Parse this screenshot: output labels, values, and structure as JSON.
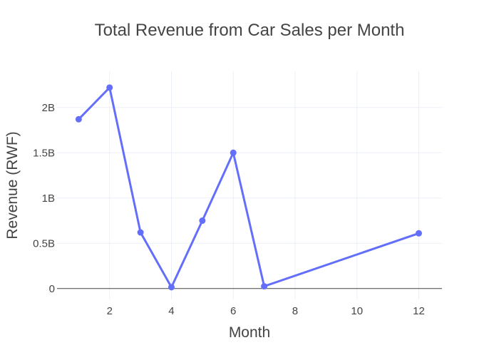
{
  "colors": {
    "background": "#ffffff",
    "plot_background": "#ffffff",
    "grid": "#ebf0f8",
    "zeroline": "#444444",
    "series_line": "#636efa",
    "text": "#444444"
  },
  "chart_data": {
    "type": "line",
    "title": "Total Revenue from Car Sales per Month",
    "xlabel": "Month",
    "ylabel": "Revenue (RWF)",
    "xlim": [
      0.3,
      12.75
    ],
    "ylim": [
      -0.12,
      2.4
    ],
    "y_unit_note": "billions",
    "x_ticks": [
      2,
      4,
      6,
      8,
      10,
      12
    ],
    "x_tick_labels": [
      "2",
      "4",
      "6",
      "8",
      "10",
      "12"
    ],
    "y_ticks": [
      0,
      0.5,
      1,
      1.5,
      2
    ],
    "y_tick_labels": [
      "0",
      "0.5B",
      "1B",
      "1.5B",
      "2B"
    ],
    "grid": true,
    "legend": false,
    "series": [
      {
        "x": [
          1,
          2,
          3,
          4,
          5,
          6,
          7,
          12
        ],
        "values": [
          1.87,
          2.22,
          0.62,
          0.015,
          0.75,
          1.5,
          0.025,
          0.61
        ]
      }
    ]
  }
}
